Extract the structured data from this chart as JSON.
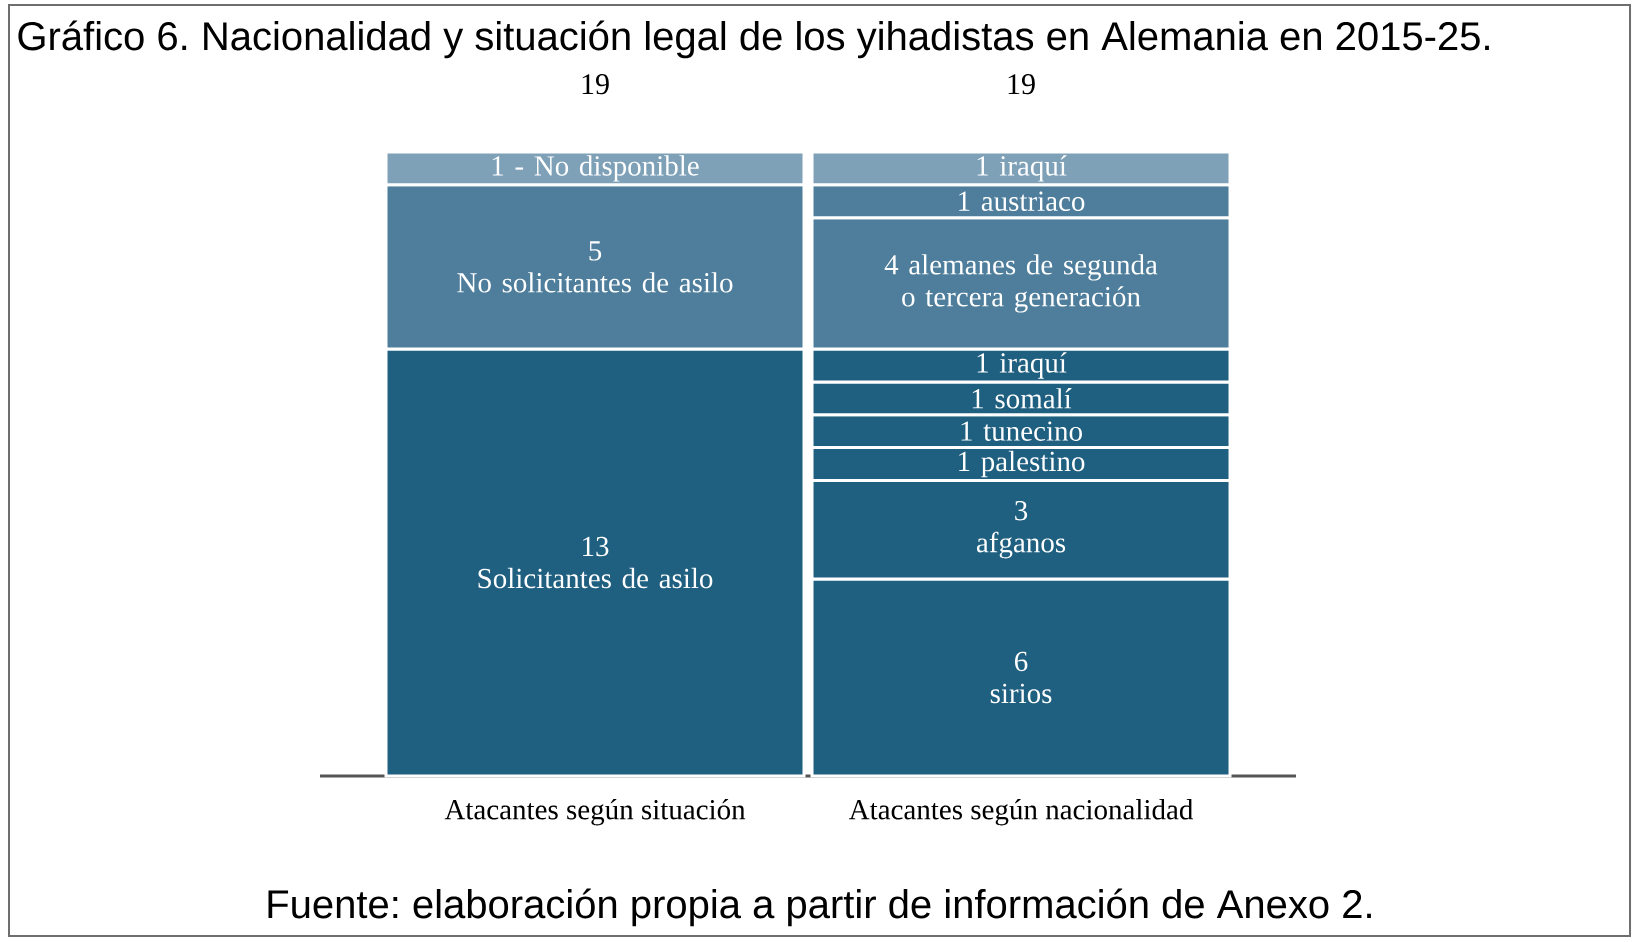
{
  "chart_data": {
    "type": "bar",
    "stacked": true,
    "title": "Gráfico 6. Nacionalidad y situación legal de los yihadistas en Alemania en 2015-25.",
    "categories": [
      "Atacantes según situación",
      "Atacantes según nacionalidad"
    ],
    "series": [
      {
        "color": "#1f5f80",
        "values": [
          13,
          null
        ],
        "value_labels": [
          "13\nSolicitantes de asilo",
          null
        ]
      },
      {
        "color": "#4e7e9b",
        "values": [
          5,
          null
        ],
        "value_labels": [
          "5\nNo solicitantes de asilo",
          null
        ]
      },
      {
        "color": "#7ea1b8",
        "values": [
          1,
          null
        ],
        "value_labels": [
          "1 - No disponible",
          null
        ]
      },
      {
        "color": "#1f5f80",
        "values": [
          null,
          6
        ],
        "value_labels": [
          null,
          "6\nsirios"
        ]
      },
      {
        "color": "#1f5f80",
        "values": [
          null,
          3
        ],
        "value_labels": [
          null,
          "3\nafganos"
        ]
      },
      {
        "color": "#1f5f80",
        "values": [
          null,
          1
        ],
        "value_labels": [
          null,
          "1 palestino"
        ]
      },
      {
        "color": "#1f5f80",
        "values": [
          null,
          1
        ],
        "value_labels": [
          null,
          "1 tunecino"
        ]
      },
      {
        "color": "#1f5f80",
        "values": [
          null,
          1
        ],
        "value_labels": [
          null,
          "1 somalí"
        ]
      },
      {
        "color": "#1f5f80",
        "values": [
          null,
          1
        ],
        "value_labels": [
          null,
          "1 iraquí"
        ]
      },
      {
        "color": "#4e7e9b",
        "values": [
          null,
          4
        ],
        "value_labels": [
          null,
          "4 alemanes de segunda\no tercera generación"
        ]
      },
      {
        "color": "#4e7e9b",
        "values": [
          null,
          1
        ],
        "value_labels": [
          null,
          "1 austriaco"
        ]
      },
      {
        "color": "#7ea1b8",
        "values": [
          null,
          1
        ],
        "value_labels": [
          null,
          "1 iraquí"
        ]
      }
    ],
    "totals": [
      "19",
      "19"
    ],
    "annotations": [
      "Fuente: elaboración propia a partir de información de Anexo 2."
    ]
  }
}
